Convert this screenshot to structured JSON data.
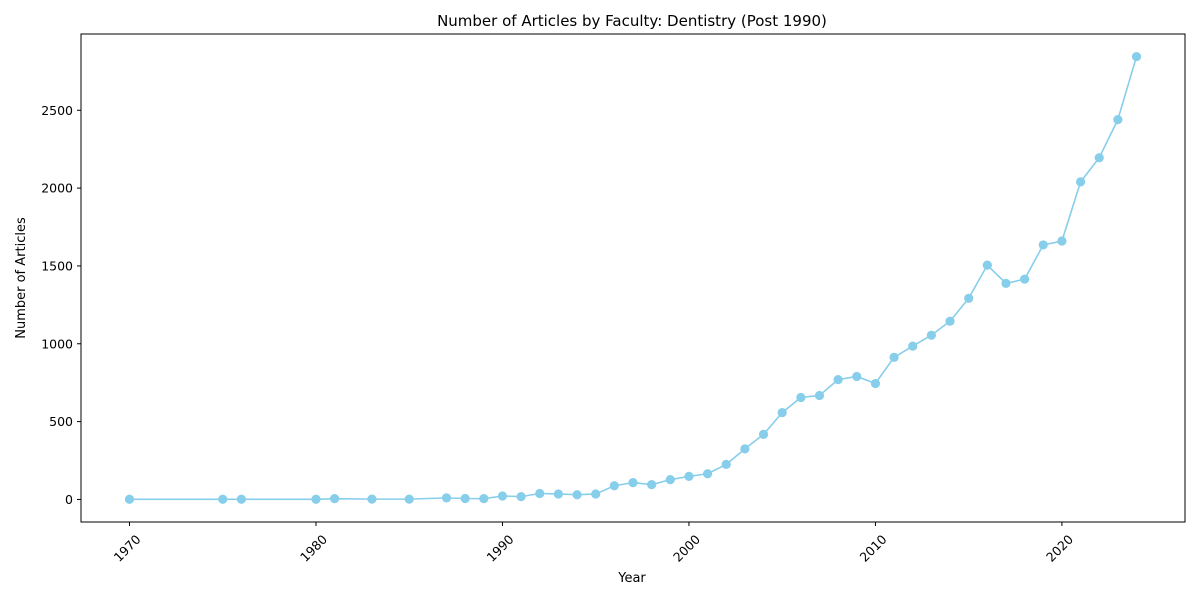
{
  "chart_data": {
    "type": "line",
    "title": "Number of Articles by Faculty: Dentistry (Post 1990)",
    "xlabel": "Year",
    "ylabel": "Number of Articles",
    "xlim": [
      1967.4,
      2026.6
    ],
    "ylim": [
      -145,
      2990
    ],
    "xticks": [
      1970,
      1980,
      1990,
      2000,
      2010,
      2020
    ],
    "yticks": [
      0,
      500,
      1000,
      1500,
      2000,
      2500
    ],
    "grid": false,
    "legend": "none",
    "color": "#87CEEB",
    "series": [
      {
        "x": [
          1970,
          1975,
          1976,
          1980,
          1981,
          1983,
          1985,
          1987,
          1988,
          1989,
          1990,
          1991,
          1992,
          1993,
          1994,
          1995,
          1996,
          1997,
          1998,
          1999,
          2000,
          2001,
          2002,
          2003,
          2004,
          2005,
          2006,
          2007,
          2008,
          2009,
          2010,
          2011,
          2012,
          2013,
          2014,
          2015,
          2016,
          2017,
          2018,
          2019,
          2020,
          2021,
          2022,
          2023,
          2024
        ],
        "values": [
          1,
          1,
          1,
          1,
          5,
          2,
          2,
          10,
          6,
          5,
          22,
          18,
          38,
          35,
          30,
          35,
          88,
          108,
          95,
          127,
          148,
          165,
          225,
          325,
          418,
          558,
          655,
          668,
          770,
          790,
          745,
          913,
          985,
          1055,
          1145,
          1292,
          1505,
          1388,
          1415,
          1635,
          1660,
          2040,
          2195,
          2440,
          2845
        ]
      }
    ]
  }
}
